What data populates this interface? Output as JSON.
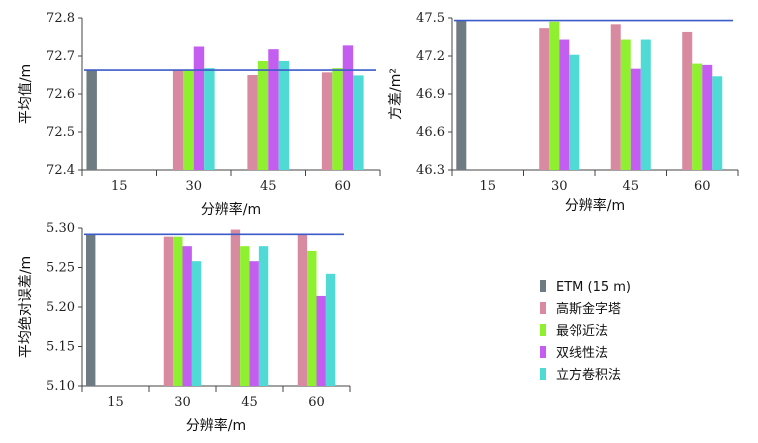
{
  "chart_data": [
    {
      "type": "bar",
      "categories": [
        "15",
        "30",
        "45",
        "60"
      ],
      "xlabel": "分辨率/m",
      "ylabel": "平均值/m",
      "ylim": [
        72.4,
        72.8
      ],
      "yticks": [
        "72.4",
        "72.5",
        "72.6",
        "72.7",
        "72.8"
      ],
      "reference_value": 72.663,
      "series": [
        {
          "name": "ETM (15 m)",
          "values": [
            72.663,
            null,
            null,
            null
          ]
        },
        {
          "name": "高斯金字塔",
          "values": [
            null,
            72.662,
            72.65,
            72.657
          ]
        },
        {
          "name": "最邻近法",
          "values": [
            null,
            72.662,
            72.687,
            72.668
          ]
        },
        {
          "name": "双线性法",
          "values": [
            null,
            72.725,
            72.718,
            72.728
          ]
        },
        {
          "name": "立方卷积法",
          "values": [
            null,
            72.668,
            72.687,
            72.649
          ]
        }
      ]
    },
    {
      "type": "bar",
      "categories": [
        "15",
        "30",
        "45",
        "60"
      ],
      "xlabel": "分辨率/m",
      "ylabel": "方差/m²",
      "ylim": [
        46.3,
        47.5
      ],
      "yticks": [
        "46.3",
        "46.6",
        "46.9",
        "47.2",
        "47.5"
      ],
      "reference_value": 47.48,
      "series": [
        {
          "name": "ETM (15 m)",
          "values": [
            47.48,
            null,
            null,
            null
          ]
        },
        {
          "name": "高斯金字塔",
          "values": [
            null,
            47.42,
            47.45,
            47.39
          ]
        },
        {
          "name": "最邻近法",
          "values": [
            null,
            47.47,
            47.33,
            47.14
          ]
        },
        {
          "name": "双线性法",
          "values": [
            null,
            47.33,
            47.1,
            47.13
          ]
        },
        {
          "name": "立方卷积法",
          "values": [
            null,
            47.21,
            47.33,
            47.04
          ]
        }
      ]
    },
    {
      "type": "bar",
      "categories": [
        "15",
        "30",
        "45",
        "60"
      ],
      "xlabel": "分辨率/m",
      "ylabel": "平均绝对误差/m",
      "ylim": [
        5.1,
        5.3
      ],
      "yticks": [
        "5.10",
        "5.15",
        "5.20",
        "5.25",
        "5.30"
      ],
      "reference_value": 5.292,
      "series": [
        {
          "name": "ETM (15 m)",
          "values": [
            5.292,
            null,
            null,
            null
          ]
        },
        {
          "name": "高斯金字塔",
          "values": [
            null,
            5.289,
            5.298,
            5.293
          ]
        },
        {
          "name": "最邻近法",
          "values": [
            null,
            5.289,
            5.277,
            5.271
          ]
        },
        {
          "name": "双线性法",
          "values": [
            null,
            5.277,
            5.258,
            5.214
          ]
        },
        {
          "name": "立方卷积法",
          "values": [
            null,
            5.258,
            5.277,
            5.242
          ]
        }
      ]
    }
  ],
  "legend": [
    {
      "label": "ETM (15 m)",
      "color": "#6e7b82"
    },
    {
      "label": "高斯金字塔",
      "color": "#d88aa0"
    },
    {
      "label": "最邻近法",
      "color": "#8ff030"
    },
    {
      "label": "双线性法",
      "color": "#c45ef0"
    },
    {
      "label": "立方卷积法",
      "color": "#4fdad6"
    }
  ],
  "reference_line_color": "#3b5bc9"
}
